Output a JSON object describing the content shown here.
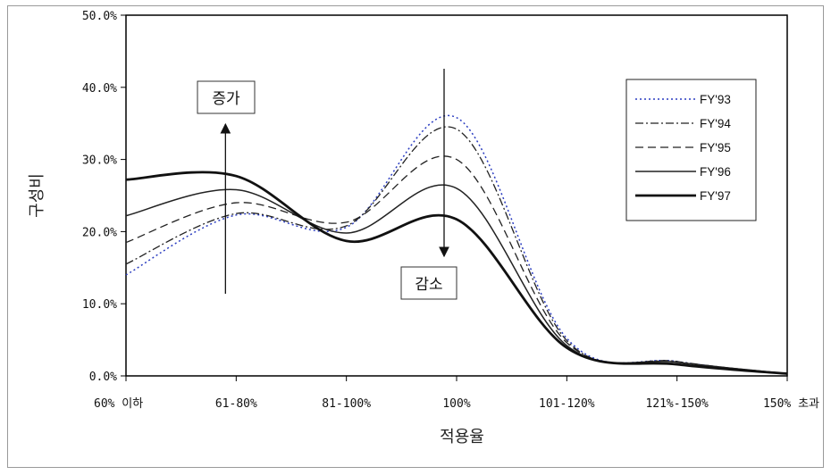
{
  "chart_data": {
    "type": "line",
    "xlabel": "적용율",
    "ylabel": "구성비",
    "categories": [
      "60% 이하",
      "61-80%",
      "81-100%",
      "100%",
      "101-120%",
      "121%-150%",
      "150% 초과"
    ],
    "yticks": [
      "0.0%",
      "10.0%",
      "20.0%",
      "30.0%",
      "40.0%",
      "50.0%"
    ],
    "ylim": [
      0,
      50
    ],
    "grid": false,
    "legend": "right",
    "series": [
      {
        "name": "FY'93",
        "values": [
          14.0,
          22.3,
          20.6,
          35.8,
          5.2,
          2.0,
          0.3
        ],
        "color": "#2a3cc0",
        "dash": "2,3",
        "width": 1.5
      },
      {
        "name": "FY'94",
        "values": [
          15.5,
          22.5,
          20.8,
          34.2,
          4.9,
          2.0,
          0.3
        ],
        "color": "#222222",
        "dash": "9,3,2,3",
        "width": 1.3
      },
      {
        "name": "FY'95",
        "values": [
          18.5,
          24.0,
          21.3,
          30.0,
          4.6,
          1.9,
          0.3
        ],
        "color": "#222222",
        "dash": "9,5",
        "width": 1.3
      },
      {
        "name": "FY'96",
        "values": [
          22.2,
          25.8,
          19.8,
          26.0,
          4.2,
          1.9,
          0.3
        ],
        "color": "#222222",
        "dash": "",
        "width": 1.5
      },
      {
        "name": "FY'97",
        "values": [
          27.2,
          27.7,
          18.7,
          21.7,
          3.9,
          1.6,
          0.3
        ],
        "color": "#111111",
        "dash": "",
        "width": 2.8
      }
    ],
    "annotations": [
      {
        "text": "증가",
        "direction": "up",
        "category": "61-80%"
      },
      {
        "text": "감소",
        "direction": "down",
        "category": "100%"
      }
    ]
  }
}
